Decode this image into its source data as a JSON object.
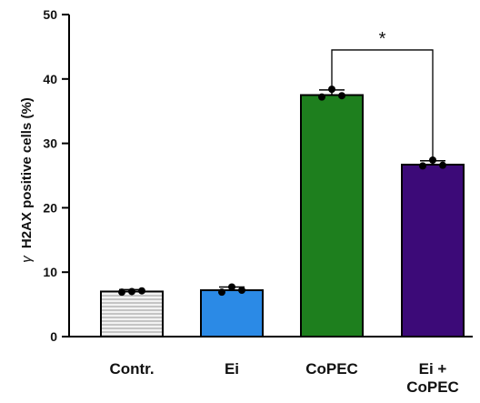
{
  "chart_data": {
    "type": "bar",
    "ylabel_symbol": "γ",
    "ylabel": "H2AX positive cells (%)",
    "ylim": [
      0,
      50
    ],
    "yticks": [
      0,
      10,
      20,
      30,
      40,
      50
    ],
    "categories": [
      "Contr.",
      "Ei",
      "CoPEC",
      "Ei +\nCoPEC"
    ],
    "values": [
      7.0,
      7.2,
      37.5,
      26.7
    ],
    "errors": [
      0.3,
      0.5,
      0.8,
      0.6
    ],
    "points": [
      [
        6.9,
        7.0,
        7.1
      ],
      [
        6.9,
        7.7,
        7.2
      ],
      [
        37.2,
        38.4,
        37.4
      ],
      [
        26.5,
        27.4,
        26.6
      ]
    ],
    "bar_colors": [
      "#ececec",
      "#2b8ae6",
      "#1e7f1e",
      "#3c0a78"
    ],
    "bar_patterns": [
      "horizontal-lines",
      "solid",
      "solid",
      "solid"
    ],
    "significance": {
      "from": 2,
      "to": 3,
      "y": 44.5,
      "label": "*"
    }
  }
}
